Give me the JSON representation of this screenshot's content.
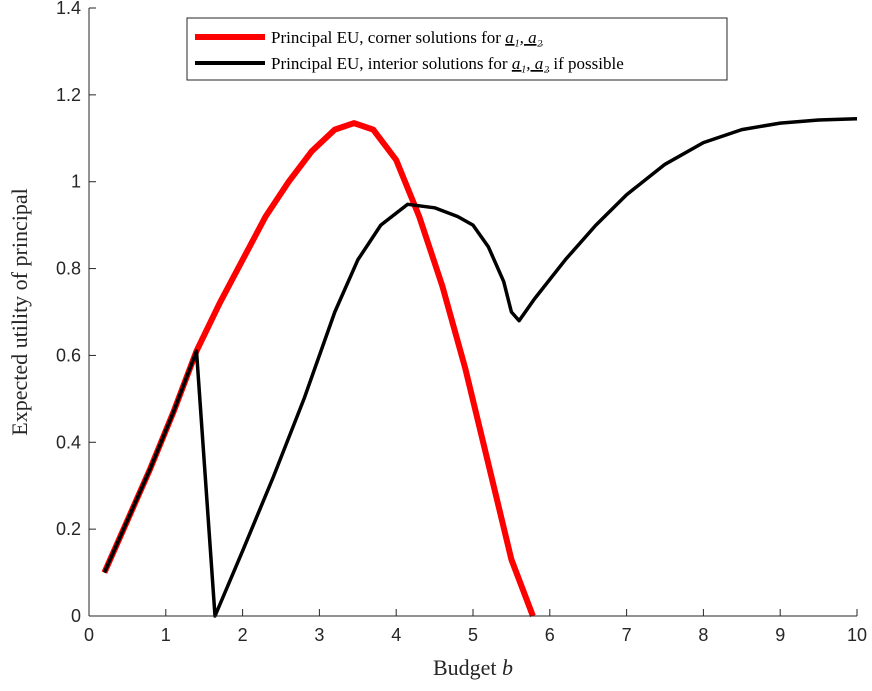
{
  "chart_data": {
    "type": "line",
    "xlabel": "Budget b",
    "ylabel": "Expected utility of principal",
    "xlim": [
      0,
      10
    ],
    "ylim": [
      0,
      1.4
    ],
    "xticks": [
      0,
      1,
      2,
      3,
      4,
      5,
      6,
      7,
      8,
      9,
      10
    ],
    "yticks": [
      0,
      0.2,
      0.4,
      0.6,
      0.8,
      1,
      1.2,
      1.4
    ],
    "grid": false,
    "legend_position": "top-right",
    "series": [
      {
        "name": "Principal EU, corner solutions for a_1, a_2",
        "color": "#ff0000",
        "x": [
          0.2,
          0.5,
          0.8,
          1.1,
          1.4,
          1.7,
          2.0,
          2.3,
          2.6,
          2.9,
          3.2,
          3.45,
          3.7,
          4.0,
          4.3,
          4.6,
          4.9,
          5.2,
          5.5,
          5.78
        ],
        "y": [
          0.1,
          0.22,
          0.34,
          0.47,
          0.61,
          0.72,
          0.82,
          0.92,
          1.0,
          1.07,
          1.12,
          1.135,
          1.12,
          1.05,
          0.92,
          0.76,
          0.57,
          0.35,
          0.13,
          0.0
        ]
      },
      {
        "name": "Principal EU, interior solutions for a_1, a_2 if possible",
        "color": "#000000",
        "x": [
          0.2,
          0.5,
          0.8,
          1.1,
          1.4,
          1.64,
          2.0,
          2.4,
          2.8,
          3.2,
          3.5,
          3.8,
          4.15,
          4.5,
          4.8,
          5.0,
          5.2,
          5.4,
          5.5,
          5.6,
          5.8,
          6.2,
          6.6,
          7.0,
          7.5,
          8.0,
          8.5,
          9.0,
          9.5,
          10.0
        ],
        "y": [
          0.1,
          0.22,
          0.34,
          0.47,
          0.61,
          0.0,
          0.15,
          0.32,
          0.5,
          0.7,
          0.82,
          0.9,
          0.948,
          0.94,
          0.92,
          0.9,
          0.85,
          0.77,
          0.7,
          0.68,
          0.73,
          0.82,
          0.9,
          0.97,
          1.04,
          1.09,
          1.12,
          1.135,
          1.142,
          1.145
        ]
      }
    ]
  },
  "legend": {
    "entries": [
      {
        "text": "Principal EU, corner solutions for ",
        "math": "a₁, a₂",
        "suffix": "",
        "color": "#ff0000"
      },
      {
        "text": "Principal EU, interior solutions for ",
        "math": "a₁, a₂",
        "suffix": " if possible",
        "color": "#000000"
      }
    ]
  },
  "axis_titles": {
    "x_text": "Budget ",
    "x_var": "b",
    "y_text": "Expected utility of principal"
  }
}
